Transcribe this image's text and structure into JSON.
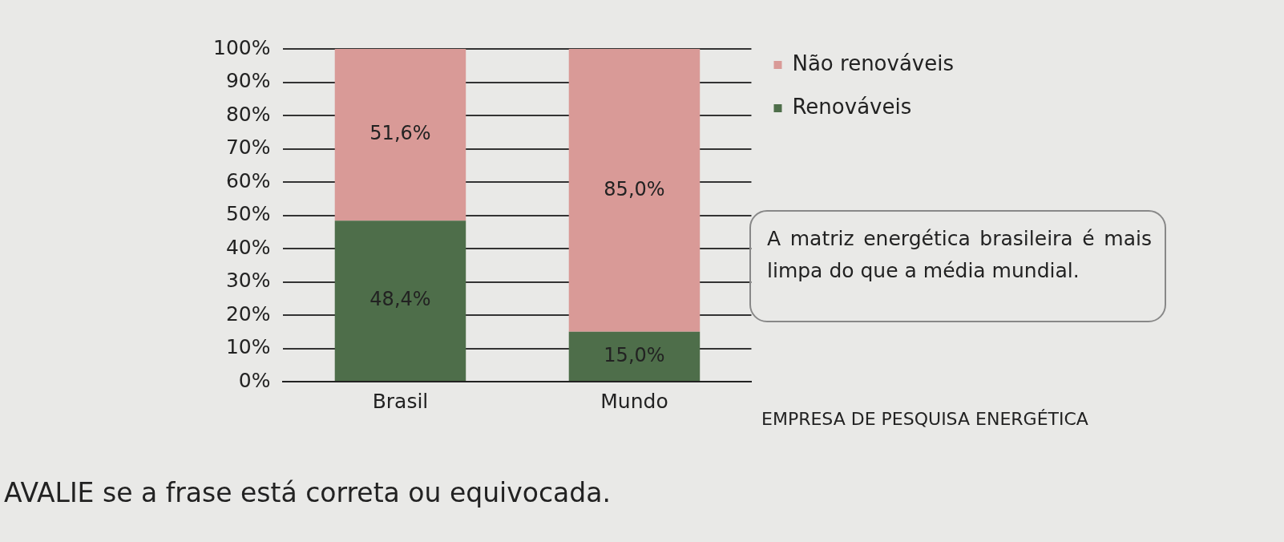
{
  "chart_data": {
    "type": "bar",
    "stacked": true,
    "categories": [
      "Brasil",
      "Mundo"
    ],
    "series": [
      {
        "name": "Renováveis",
        "color": "#4e6e4a",
        "values": [
          48.4,
          15.0
        ],
        "value_labels": [
          "48,4%",
          "15,0%"
        ]
      },
      {
        "name": "Não renováveis",
        "color": "#d99a97",
        "values": [
          51.6,
          85.0
        ],
        "value_labels": [
          "51,6%",
          "85,0%"
        ]
      }
    ],
    "ylim": [
      0,
      100
    ],
    "yticks": [
      {
        "value": 0,
        "label": "0%"
      },
      {
        "value": 10,
        "label": "10%"
      },
      {
        "value": 20,
        "label": "20%"
      },
      {
        "value": 30,
        "label": "30%"
      },
      {
        "value": 40,
        "label": "40%"
      },
      {
        "value": 50,
        "label": "50%"
      },
      {
        "value": 60,
        "label": "60%"
      },
      {
        "value": 70,
        "label": "70%"
      },
      {
        "value": 80,
        "label": "80%"
      },
      {
        "value": 90,
        "label": "90%"
      },
      {
        "value": 100,
        "label": "100%"
      }
    ],
    "grid": "y",
    "legend": "right",
    "annotations": [
      "A matriz energética brasileira é mais limpa do que a média mundial.",
      "EMPRESA DE PESQUISA ENERGÉTICA",
      "AVALIE se a frase está correta ou equivocada."
    ]
  }
}
